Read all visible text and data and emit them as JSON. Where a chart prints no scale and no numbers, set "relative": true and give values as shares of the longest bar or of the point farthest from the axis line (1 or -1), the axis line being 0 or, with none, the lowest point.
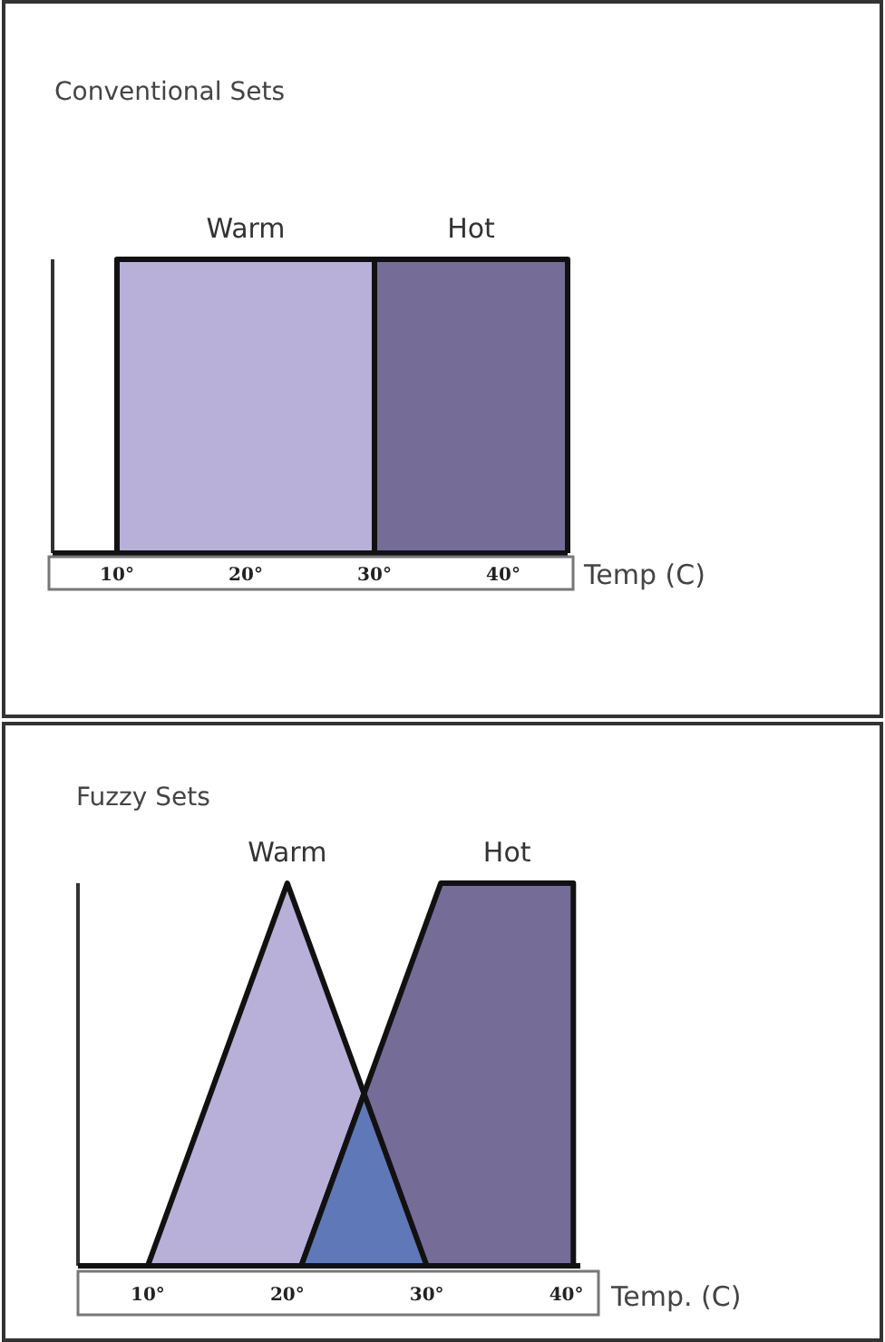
{
  "chart_data": [
    {
      "type": "area",
      "title": "Conventional Sets",
      "xlabel": "Temp (C)",
      "relative": true,
      "xlim": [
        5,
        45
      ],
      "xticks": [
        {
          "value": 10,
          "label": "10°"
        },
        {
          "value": 20,
          "label": "20°"
        },
        {
          "value": 30,
          "label": "30°"
        },
        {
          "value": 40,
          "label": "40°"
        }
      ],
      "series": [
        {
          "name": "Warm",
          "color": "#b8b0d8",
          "x": [
            10,
            10,
            30,
            30
          ],
          "values": [
            0,
            1,
            1,
            0
          ]
        },
        {
          "name": "Hot",
          "color": "#756c98",
          "x": [
            30,
            30,
            45,
            45
          ],
          "values": [
            0,
            1,
            1,
            0
          ]
        }
      ]
    },
    {
      "type": "area",
      "title": "Fuzzy Sets",
      "xlabel": "Temp. (C)",
      "relative": true,
      "xlim": [
        5,
        41
      ],
      "xticks": [
        {
          "value": 10,
          "label": "10°"
        },
        {
          "value": 20,
          "label": "20°"
        },
        {
          "value": 30,
          "label": "30°"
        },
        {
          "value": 40,
          "label": "40°"
        }
      ],
      "series": [
        {
          "name": "Warm",
          "color": "#b8b0d8",
          "x": [
            10,
            20,
            30
          ],
          "values": [
            0,
            1,
            0
          ]
        },
        {
          "name": "Hot",
          "color": "#756c98",
          "x": [
            21,
            31,
            40.5,
            40.5
          ],
          "values": [
            0,
            1,
            1,
            0
          ]
        },
        {
          "color": "#5f78b8",
          "x": [
            21,
            25.5,
            30
          ],
          "values": [
            0,
            0.45,
            0
          ]
        }
      ]
    }
  ]
}
